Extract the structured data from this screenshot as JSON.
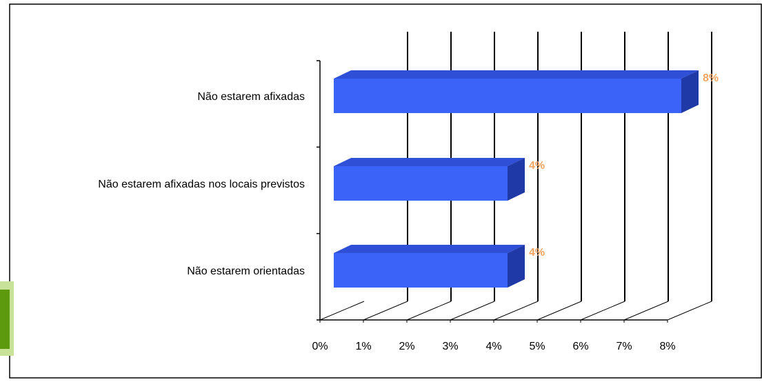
{
  "chart_data": {
    "type": "bar",
    "orientation": "horizontal",
    "style": "3d",
    "categories": [
      "Não estarem afixadas",
      "Não estarem afixadas nos locais previstos",
      "Não estarem orientadas"
    ],
    "values": [
      8,
      4,
      4
    ],
    "data_labels": [
      "8%",
      "4%",
      "4%"
    ],
    "x_ticks": [
      "0%",
      "1%",
      "2%",
      "3%",
      "4%",
      "5%",
      "6%",
      "7%",
      "8%"
    ],
    "xlim": [
      0,
      8
    ],
    "grid": true,
    "legend": "none"
  },
  "colors": {
    "bar_front": "#3b63f7",
    "bar_top": "#2f4fd6",
    "bar_side": "#1f3aa6",
    "data_label": "#f4a460",
    "gridline": "#000000",
    "frame": "#000000",
    "side_decoration": "#7ab317"
  }
}
